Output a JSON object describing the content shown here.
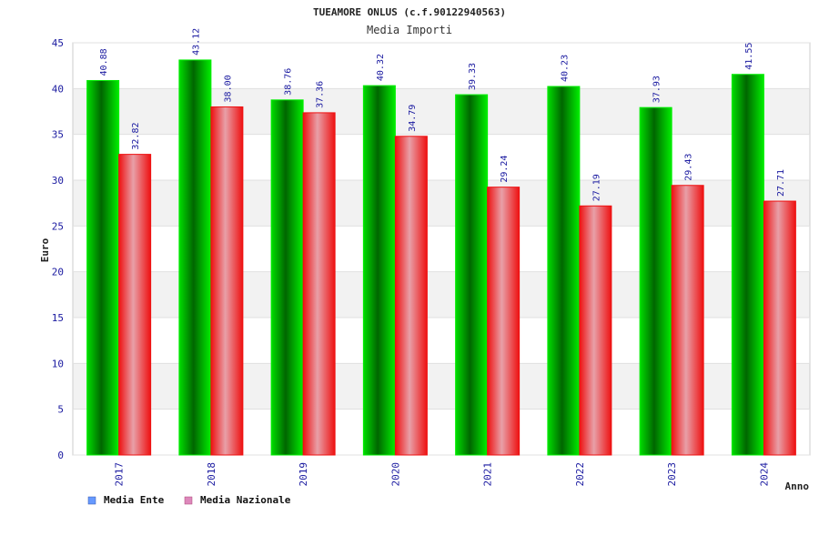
{
  "chart_data": {
    "type": "bar",
    "title": "TUEAMORE ONLUS (c.f.90122940563)",
    "subtitle": "Media Importi",
    "ylabel": "Euro",
    "xlabel": "Anno",
    "ylim": [
      0,
      45
    ],
    "yticks": [
      "0",
      "5",
      "10",
      "15",
      "20",
      "25",
      "30",
      "35",
      "40",
      "45"
    ],
    "categories": [
      "2017",
      "2018",
      "2019",
      "2020",
      "2021",
      "2022",
      "2023",
      "2024"
    ],
    "series": [
      {
        "name": "Media Ente",
        "values": [
          40.88,
          43.12,
          38.76,
          40.32,
          39.33,
          40.23,
          37.93,
          41.55
        ],
        "labels": [
          "40.88",
          "43.12",
          "38.76",
          "40.32",
          "39.33",
          "40.23",
          "37.93",
          "41.55"
        ]
      },
      {
        "name": "Media Nazionale",
        "values": [
          32.82,
          38.0,
          37.36,
          34.79,
          29.24,
          27.19,
          29.43,
          27.71
        ],
        "labels": [
          "32.82",
          "38.00",
          "37.36",
          "34.79",
          "29.24",
          "27.19",
          "29.43",
          "27.71"
        ]
      }
    ],
    "colors": {
      "ente_dark": "#006600",
      "ente_light": "#00ee00",
      "nazionale_dark": "#ee1111",
      "nazionale_light": "#e8a0a8",
      "legend_ente": "#6699ff",
      "legend_nazionale": "#dd88bb",
      "band": "#f2f2f2",
      "axis": "#cccccc"
    },
    "grid": true,
    "legend_position": "bottom-left"
  }
}
